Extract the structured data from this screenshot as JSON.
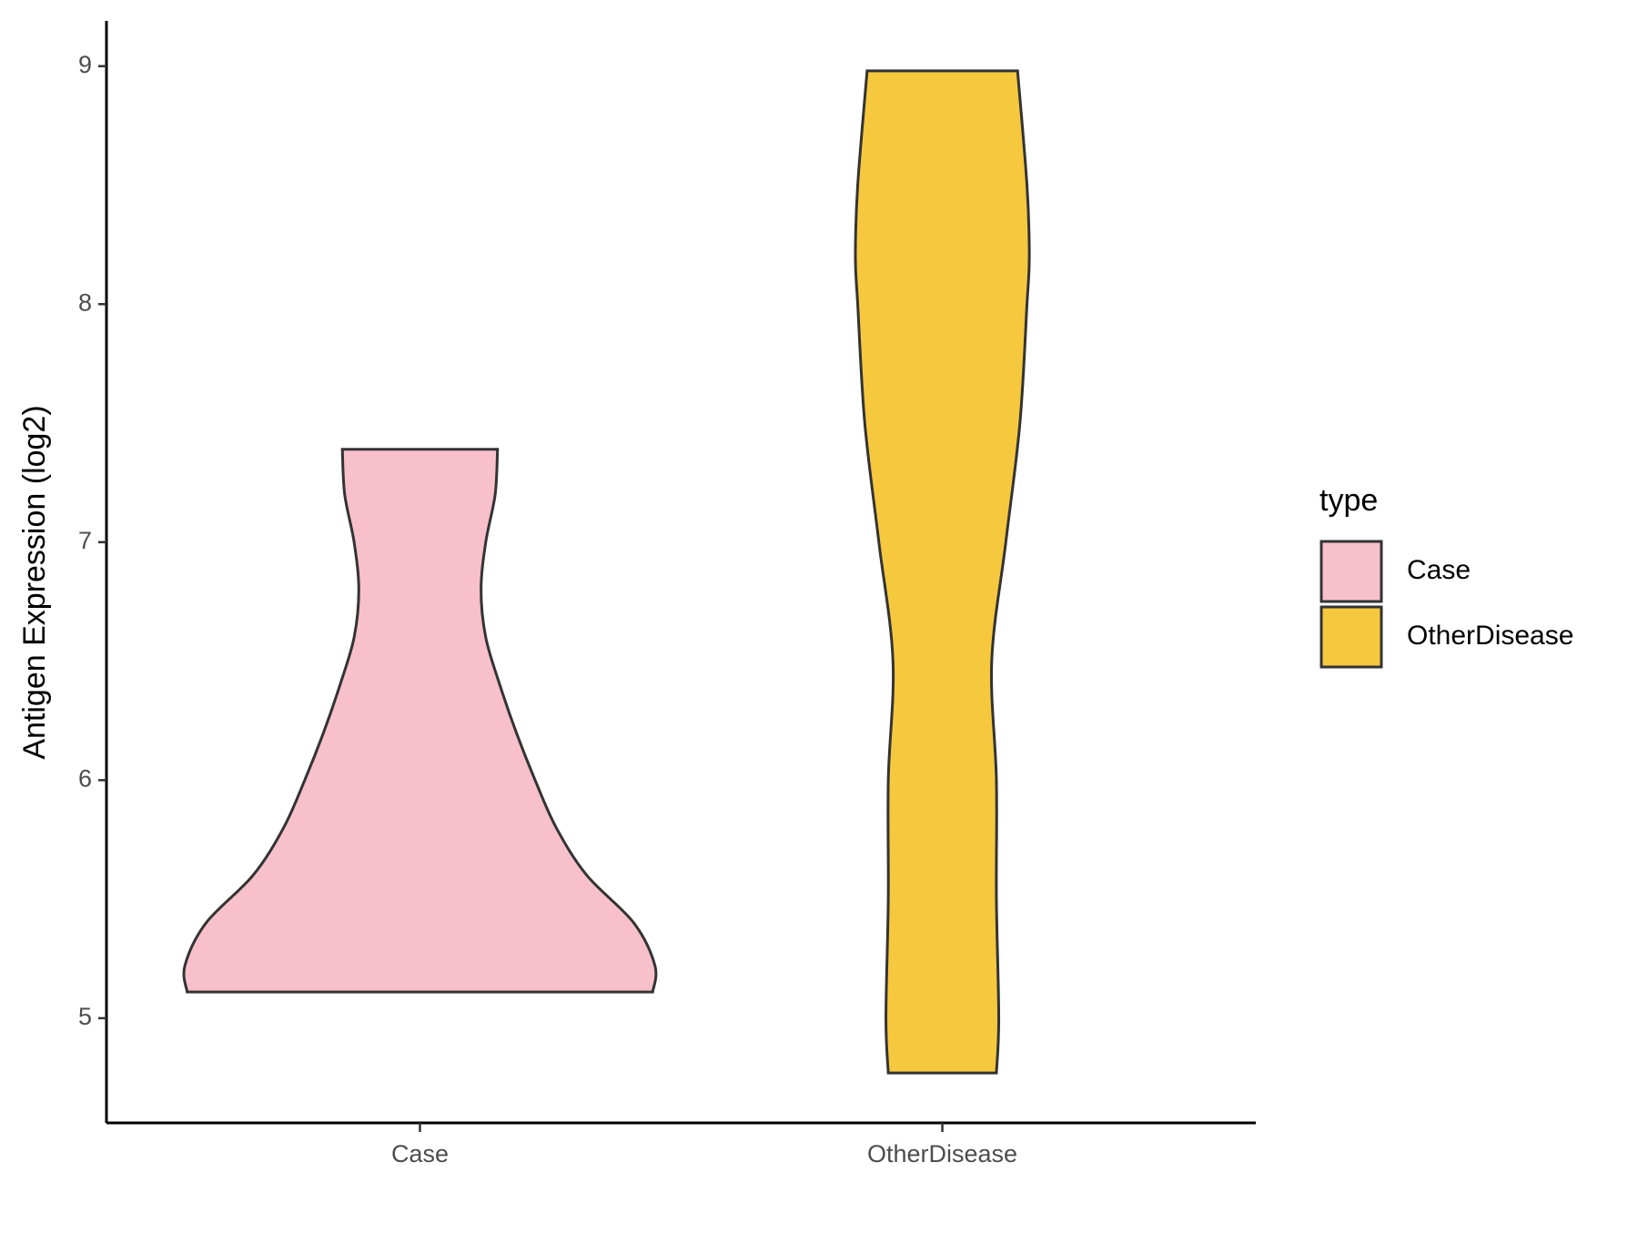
{
  "chart_data": {
    "type": "violin",
    "y_label": "Antigen Expression (log2)",
    "categories": [
      "Case",
      "OtherDisease"
    ],
    "ylim": [
      4.56,
      9.19
    ],
    "yticks": [
      5,
      6,
      7,
      8,
      9
    ],
    "legend_title": "type",
    "legend": "right",
    "series": [
      {
        "name": "Case",
        "color": "#f7c0cb",
        "y": [
          5.11,
          5.22,
          5.4,
          5.6,
          5.8,
          6.0,
          6.2,
          6.4,
          6.6,
          6.8,
          7.0,
          7.2,
          7.39
        ],
        "density": [
          0.99,
          1.0,
          0.91,
          0.71,
          0.58,
          0.49,
          0.41,
          0.34,
          0.28,
          0.26,
          0.28,
          0.32,
          0.33
        ]
      },
      {
        "name": "OtherDisease",
        "color": "#f5c83e",
        "y": [
          4.77,
          5.0,
          5.5,
          6.0,
          6.5,
          7.0,
          7.5,
          8.0,
          8.2,
          8.5,
          8.98
        ],
        "density": [
          0.23,
          0.24,
          0.23,
          0.23,
          0.21,
          0.27,
          0.33,
          0.36,
          0.37,
          0.36,
          0.32
        ]
      }
    ]
  }
}
